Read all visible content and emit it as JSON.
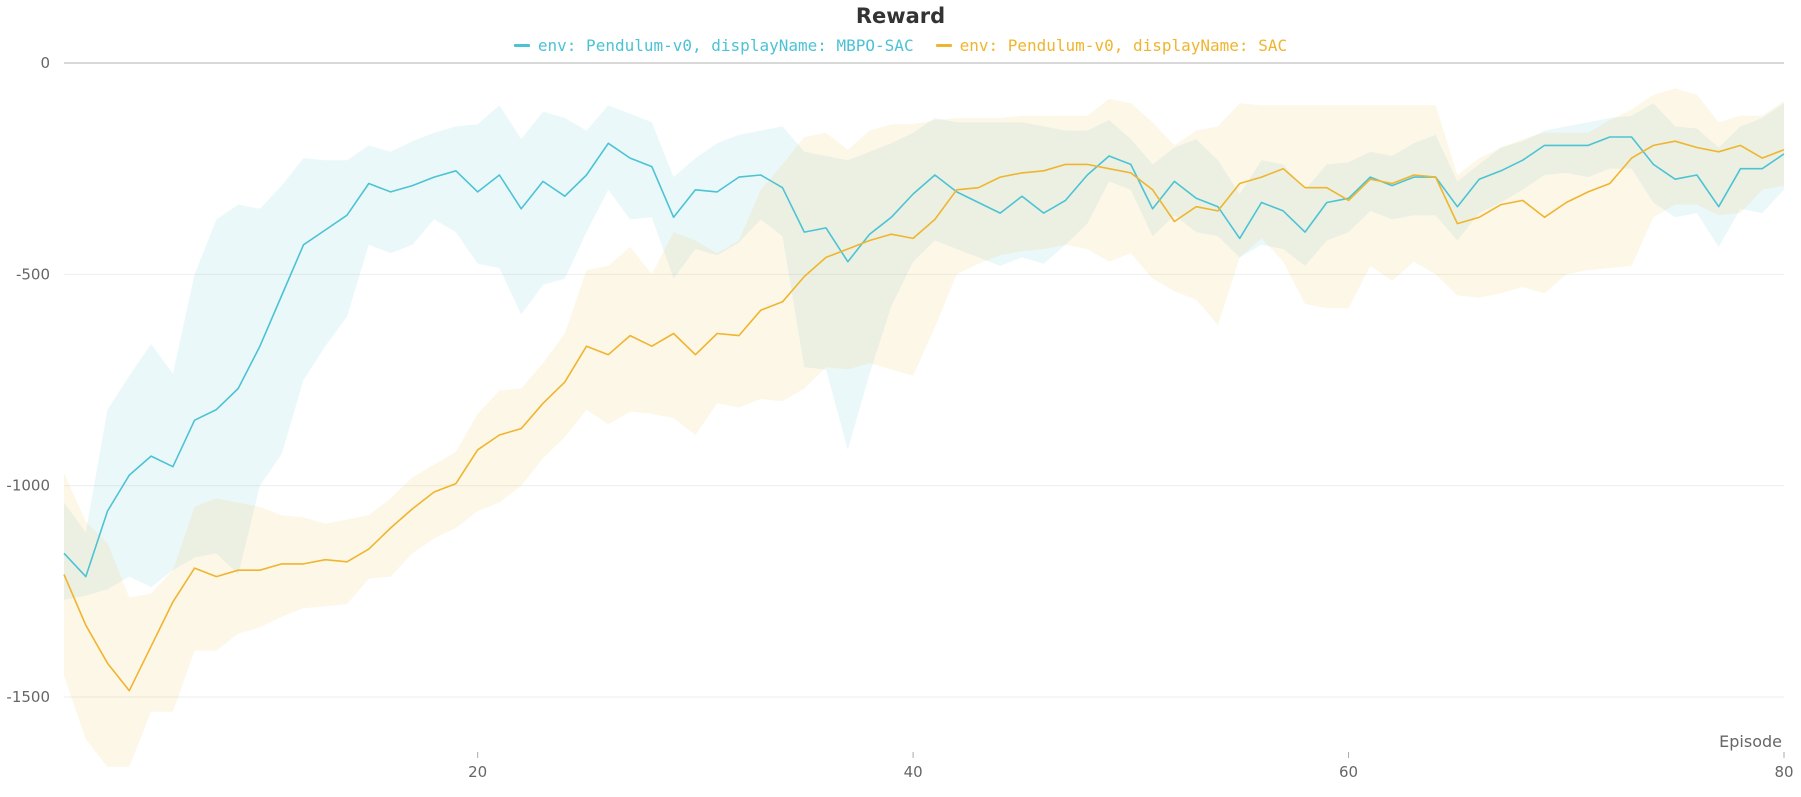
{
  "chart_data": {
    "type": "line",
    "title": "Reward",
    "xlabel": "Episode",
    "ylabel": "",
    "xlim": [
      1,
      80
    ],
    "ylim": [
      -1630,
      0
    ],
    "x_ticks": [
      20,
      40,
      60,
      80
    ],
    "y_ticks": [
      0,
      -500,
      -1000,
      -1500
    ],
    "grid": true,
    "legend_position": "top-center",
    "x": [
      1,
      2,
      3,
      4,
      5,
      6,
      7,
      8,
      9,
      10,
      11,
      12,
      13,
      14,
      15,
      16,
      17,
      18,
      19,
      20,
      21,
      22,
      23,
      24,
      25,
      26,
      27,
      28,
      29,
      30,
      31,
      32,
      33,
      34,
      35,
      36,
      37,
      38,
      39,
      40,
      41,
      42,
      43,
      44,
      45,
      46,
      47,
      48,
      49,
      50,
      51,
      52,
      53,
      54,
      55,
      56,
      57,
      58,
      59,
      60,
      61,
      62,
      63,
      64,
      65,
      66,
      67,
      68,
      69,
      70,
      71,
      72,
      73,
      74,
      75,
      76,
      77,
      78,
      79,
      80
    ],
    "series": [
      {
        "name": "env: Pendulum-v0, displayName: MBPO-SAC",
        "color": "#4cc3d4",
        "values": [
          -1160,
          -1215,
          -1060,
          -975,
          -930,
          -955,
          -845,
          -820,
          -770,
          -670,
          -550,
          -430,
          -395,
          -360,
          -285,
          -305,
          -290,
          -270,
          -255,
          -305,
          -265,
          -345,
          -280,
          -315,
          -265,
          -190,
          -225,
          -245,
          -365,
          -300,
          -305,
          -270,
          -265,
          -295,
          -400,
          -390,
          -470,
          -405,
          -365,
          -310,
          -265,
          -305,
          -330,
          -355,
          -315,
          -355,
          -325,
          -265,
          -220,
          -240,
          -345,
          -280,
          -320,
          -340,
          -415,
          -330,
          -350,
          -400,
          -330,
          -320,
          -270,
          -290,
          -270,
          -270,
          -340,
          -275,
          -255,
          -230,
          -195,
          -195,
          -195,
          -175,
          -175,
          -240,
          -275,
          -265,
          -340,
          -250,
          -250,
          -215
        ],
        "upper": [
          -1040,
          -1110,
          -820,
          -740,
          -665,
          -735,
          -500,
          -370,
          -335,
          -345,
          -290,
          -225,
          -230,
          -230,
          -195,
          -210,
          -185,
          -165,
          -150,
          -145,
          -100,
          -180,
          -115,
          -130,
          -160,
          -100,
          -120,
          -140,
          -270,
          -225,
          -190,
          -170,
          -160,
          -150,
          -210,
          -220,
          -230,
          -210,
          -190,
          -165,
          -130,
          -140,
          -140,
          -140,
          -140,
          -150,
          -160,
          -160,
          -135,
          -180,
          -240,
          -200,
          -180,
          -230,
          -310,
          -230,
          -240,
          -300,
          -240,
          -235,
          -210,
          -220,
          -190,
          -170,
          -280,
          -240,
          -200,
          -185,
          -160,
          -150,
          -140,
          -130,
          -125,
          -95,
          -150,
          -155,
          -200,
          -150,
          -130,
          -95
        ],
        "lower": [
          -1270,
          -1260,
          -1245,
          -1215,
          -1240,
          -1200,
          -1170,
          -1160,
          -1210,
          -1000,
          -925,
          -750,
          -670,
          -600,
          -430,
          -450,
          -430,
          -370,
          -400,
          -475,
          -485,
          -595,
          -525,
          -510,
          -400,
          -300,
          -370,
          -365,
          -510,
          -440,
          -455,
          -425,
          -370,
          -410,
          -720,
          -725,
          -915,
          -735,
          -575,
          -470,
          -420,
          -440,
          -460,
          -480,
          -460,
          -475,
          -430,
          -380,
          -280,
          -300,
          -410,
          -360,
          -400,
          -410,
          -460,
          -430,
          -440,
          -480,
          -420,
          -400,
          -350,
          -370,
          -360,
          -360,
          -420,
          -355,
          -330,
          -300,
          -265,
          -260,
          -270,
          -250,
          -250,
          -330,
          -365,
          -355,
          -435,
          -345,
          -355,
          -300
        ]
      },
      {
        "name": "env: Pendulum-v0, displayName: SAC",
        "color": "#efb52f",
        "values": [
          -1210,
          -1330,
          -1420,
          -1485,
          -1380,
          -1275,
          -1195,
          -1215,
          -1200,
          -1200,
          -1185,
          -1185,
          -1175,
          -1180,
          -1150,
          -1100,
          -1055,
          -1015,
          -995,
          -915,
          -880,
          -865,
          -805,
          -755,
          -670,
          -690,
          -645,
          -670,
          -640,
          -690,
          -640,
          -645,
          -585,
          -565,
          -505,
          -460,
          -440,
          -420,
          -405,
          -415,
          -370,
          -300,
          -295,
          -270,
          -260,
          -255,
          -240,
          -240,
          -250,
          -260,
          -300,
          -375,
          -340,
          -350,
          -285,
          -270,
          -250,
          -295,
          -295,
          -325,
          -275,
          -285,
          -265,
          -270,
          -380,
          -365,
          -335,
          -325,
          -365,
          -330,
          -305,
          -285,
          -225,
          -195,
          -185,
          -200,
          -210,
          -195,
          -225,
          -205
        ],
        "upper": [
          -970,
          -1085,
          -1135,
          -1265,
          -1255,
          -1200,
          -1050,
          -1030,
          -1040,
          -1050,
          -1070,
          -1075,
          -1090,
          -1080,
          -1070,
          -1030,
          -980,
          -950,
          -920,
          -830,
          -775,
          -770,
          -710,
          -640,
          -490,
          -480,
          -435,
          -500,
          -400,
          -420,
          -450,
          -420,
          -300,
          -240,
          -175,
          -165,
          -205,
          -160,
          -145,
          -145,
          -135,
          -130,
          -130,
          -130,
          -125,
          -125,
          -125,
          -125,
          -85,
          -95,
          -140,
          -195,
          -160,
          -150,
          -95,
          -100,
          -100,
          -100,
          -100,
          -100,
          -100,
          -100,
          -100,
          -100,
          -265,
          -225,
          -200,
          -180,
          -165,
          -165,
          -165,
          -135,
          -110,
          -75,
          -60,
          -75,
          -140,
          -125,
          -125,
          -90
        ],
        "lower": [
          -1450,
          -1600,
          -1665,
          -1665,
          -1535,
          -1535,
          -1390,
          -1390,
          -1350,
          -1335,
          -1310,
          -1290,
          -1285,
          -1280,
          -1220,
          -1215,
          -1160,
          -1125,
          -1100,
          -1060,
          -1040,
          -1000,
          -935,
          -885,
          -820,
          -855,
          -825,
          -830,
          -840,
          -880,
          -805,
          -815,
          -795,
          -800,
          -770,
          -720,
          -725,
          -710,
          -725,
          -740,
          -625,
          -500,
          -475,
          -455,
          -445,
          -440,
          -430,
          -440,
          -470,
          -450,
          -510,
          -540,
          -560,
          -620,
          -460,
          -415,
          -470,
          -570,
          -580,
          -580,
          -480,
          -515,
          -470,
          -500,
          -550,
          -555,
          -545,
          -530,
          -545,
          -500,
          -490,
          -485,
          -480,
          -365,
          -335,
          -335,
          -360,
          -355,
          -300,
          -290
        ]
      }
    ]
  }
}
